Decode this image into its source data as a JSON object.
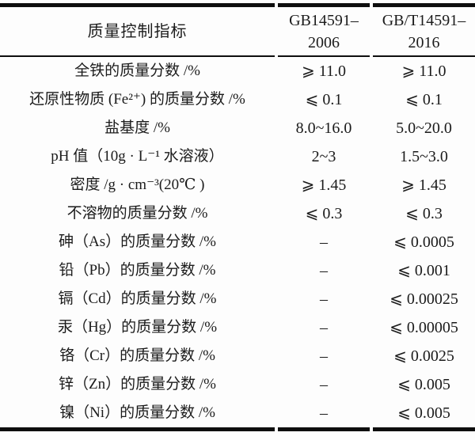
{
  "chart_data": {
    "type": "table",
    "title": "",
    "columns": [
      "质量控制指标",
      "GB14591–2006",
      "GB/T14591–2016"
    ],
    "rows": [
      [
        "全铁的质量分数 /%",
        "⩾ 11.0",
        "⩾ 11.0"
      ],
      [
        "还原性物质 (Fe²⁺) 的质量分数 /%",
        "⩽ 0.1",
        "⩽ 0.1"
      ],
      [
        "盐基度 /%",
        "8.0~16.0",
        "5.0~20.0"
      ],
      [
        "pH 值（10g · L⁻¹ 水溶液）",
        "2~3",
        "1.5~3.0"
      ],
      [
        "密度 /g · cm⁻³(20℃ )",
        "⩾ 1.45",
        "⩾ 1.45"
      ],
      [
        "不溶物的质量分数 /%",
        "⩽ 0.3",
        "⩽ 0.3"
      ],
      [
        "砷（As）的质量分数 /%",
        "–",
        "⩽ 0.0005"
      ],
      [
        "铅（Pb）的质量分数 /%",
        "–",
        "⩽ 0.001"
      ],
      [
        "镉（Cd）的质量分数 /%",
        "–",
        "⩽ 0.00025"
      ],
      [
        "汞（Hg）的质量分数 /%",
        "–",
        "⩽ 0.00005"
      ],
      [
        "铬（Cr）的质量分数 /%",
        "–",
        "⩽ 0.0025"
      ],
      [
        "锌（Zn）的质量分数 /%",
        "–",
        "⩽ 0.005"
      ],
      [
        "镍（Ni）的质量分数 /%",
        "–",
        "⩽ 0.005"
      ]
    ],
    "layout_hints": {
      "style": "three-line booktabs table with gapped rules at column boundaries",
      "column_alignment": [
        "center",
        "center",
        "center"
      ]
    }
  },
  "header": {
    "col1": "质量控制指标",
    "col2": [
      "GB14591–",
      "2006"
    ],
    "col3": [
      "GB/T14591–",
      "2016"
    ]
  },
  "colors": {
    "background": "#fdfdfd",
    "text": "#1b1b1b",
    "rule": "#0e0e0e"
  }
}
